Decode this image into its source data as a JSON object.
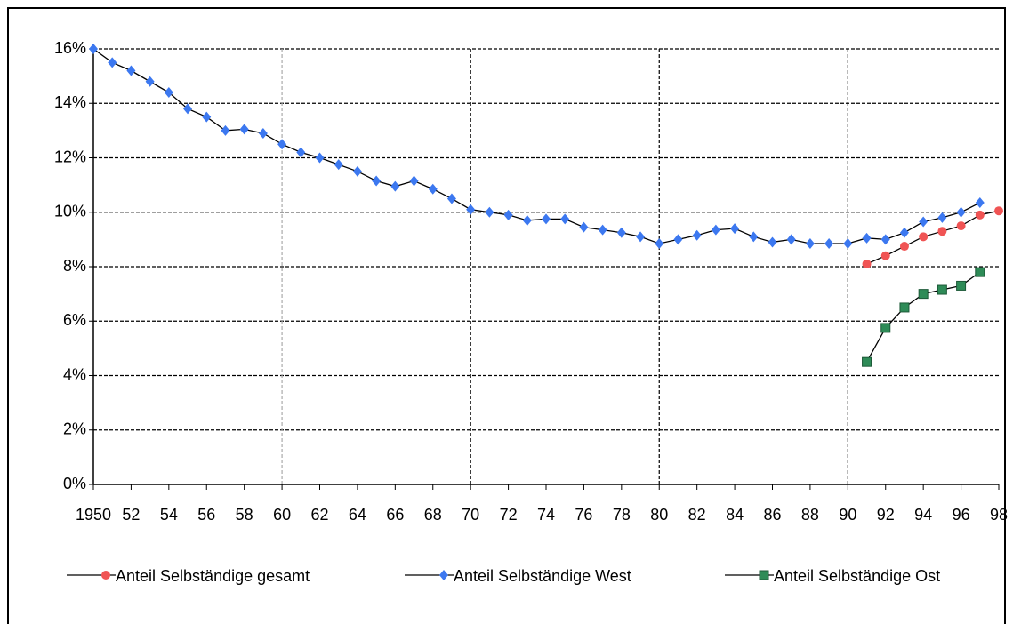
{
  "chart_data": {
    "type": "line",
    "x": [
      1950,
      1951,
      1952,
      1953,
      1954,
      1955,
      1956,
      1957,
      1958,
      1959,
      1960,
      1961,
      1962,
      1963,
      1964,
      1965,
      1966,
      1967,
      1968,
      1969,
      1970,
      1971,
      1972,
      1973,
      1974,
      1975,
      1976,
      1977,
      1978,
      1979,
      1980,
      1981,
      1982,
      1983,
      1984,
      1985,
      1986,
      1987,
      1988,
      1989,
      1990,
      1991,
      1992,
      1993,
      1994,
      1995,
      1996,
      1997,
      1998
    ],
    "series": [
      {
        "name": "Anteil Selbständige gesamt",
        "color": "#f05454",
        "marker": "circle",
        "values": [
          null,
          null,
          null,
          null,
          null,
          null,
          null,
          null,
          null,
          null,
          null,
          null,
          null,
          null,
          null,
          null,
          null,
          null,
          null,
          null,
          null,
          null,
          null,
          null,
          null,
          null,
          null,
          null,
          null,
          null,
          null,
          null,
          null,
          null,
          null,
          null,
          null,
          null,
          null,
          null,
          null,
          8.1,
          8.4,
          8.75,
          9.1,
          9.3,
          9.5,
          9.9,
          10.05
        ]
      },
      {
        "name": "Anteil Selbständige West",
        "color": "#3c78f0",
        "marker": "diamond",
        "values": [
          16.0,
          15.5,
          15.2,
          14.8,
          14.4,
          13.8,
          13.5,
          13.0,
          13.05,
          12.9,
          12.5,
          12.2,
          12.0,
          11.75,
          11.5,
          11.15,
          10.95,
          11.15,
          10.85,
          10.5,
          10.1,
          10.0,
          9.9,
          9.7,
          9.75,
          9.75,
          9.45,
          9.35,
          9.25,
          9.1,
          8.85,
          9.0,
          9.15,
          9.35,
          9.4,
          9.1,
          8.9,
          9.0,
          8.85,
          8.85,
          8.85,
          9.05,
          9.0,
          9.25,
          9.65,
          9.8,
          10.0,
          10.35,
          null
        ]
      },
      {
        "name": "Anteil Selbständige Ost",
        "color": "#2e8b57",
        "marker": "square",
        "values": [
          null,
          null,
          null,
          null,
          null,
          null,
          null,
          null,
          null,
          null,
          null,
          null,
          null,
          null,
          null,
          null,
          null,
          null,
          null,
          null,
          null,
          null,
          null,
          null,
          null,
          null,
          null,
          null,
          null,
          null,
          null,
          null,
          null,
          null,
          null,
          null,
          null,
          null,
          null,
          null,
          null,
          4.5,
          5.75,
          6.5,
          7.0,
          7.15,
          7.3,
          7.8,
          null
        ]
      }
    ],
    "xlim": [
      1950,
      1998
    ],
    "xticks": [
      1950,
      {
        "value": 1952,
        "label": "52"
      },
      {
        "value": 1954,
        "label": "54"
      },
      {
        "value": 1956,
        "label": "56"
      },
      {
        "value": 1958,
        "label": "58"
      },
      {
        "value": 1960,
        "label": "60"
      },
      {
        "value": 1962,
        "label": "62"
      },
      {
        "value": 1964,
        "label": "64"
      },
      {
        "value": 1966,
        "label": "66"
      },
      {
        "value": 1968,
        "label": "68"
      },
      {
        "value": 1970,
        "label": "70"
      },
      {
        "value": 1972,
        "label": "72"
      },
      {
        "value": 1974,
        "label": "74"
      },
      {
        "value": 1976,
        "label": "76"
      },
      {
        "value": 1978,
        "label": "78"
      },
      {
        "value": 1980,
        "label": "80"
      },
      {
        "value": 1982,
        "label": "82"
      },
      {
        "value": 1984,
        "label": "84"
      },
      {
        "value": 1986,
        "label": "86"
      },
      {
        "value": 1988,
        "label": "88"
      },
      {
        "value": 1990,
        "label": "90"
      },
      {
        "value": 1992,
        "label": "92"
      },
      {
        "value": 1994,
        "label": "94"
      },
      {
        "value": 1996,
        "label": "96"
      },
      {
        "value": 1998,
        "label": "98"
      }
    ],
    "ylim": [
      0,
      16
    ],
    "yticks": [
      {
        "value": 0,
        "label": "0%"
      },
      {
        "value": 2,
        "label": "2%"
      },
      {
        "value": 4,
        "label": "4%"
      },
      {
        "value": 6,
        "label": "6%"
      },
      {
        "value": 8,
        "label": "8%"
      },
      {
        "value": 10,
        "label": "10%"
      },
      {
        "value": 12,
        "label": "12%"
      },
      {
        "value": 14,
        "label": "14%"
      },
      {
        "value": 16,
        "label": "16%"
      }
    ],
    "grid": true,
    "legend": "bottom"
  }
}
